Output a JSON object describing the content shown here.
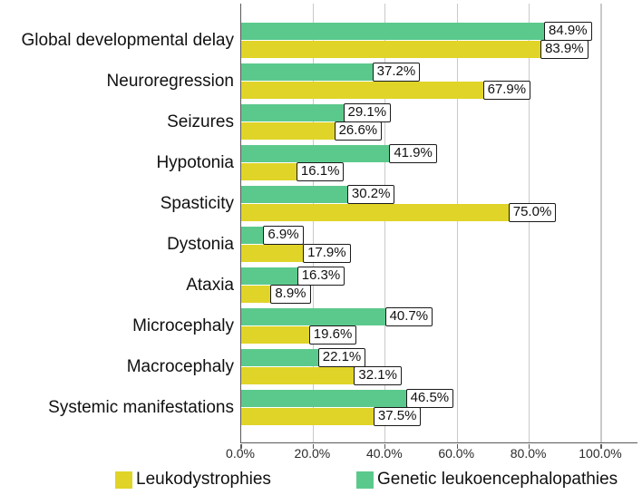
{
  "chart_data": {
    "type": "bar",
    "orientation": "horizontal",
    "title": "",
    "xlabel": "",
    "ylabel": "",
    "categories": [
      "Global developmental delay",
      "Neuroregression",
      "Seizures",
      "Hypotonia",
      "Spasticity",
      "Dystonia",
      "Ataxia",
      "Microcephaly",
      "Macrocephaly",
      "Systemic manifestations"
    ],
    "series": [
      {
        "name": "Leukodystrophies",
        "color": "#e0d428",
        "values": [
          83.9,
          67.9,
          26.6,
          16.1,
          75.0,
          17.9,
          8.9,
          19.6,
          32.1,
          37.5
        ]
      },
      {
        "name": "Genetic leukoencephalopathies",
        "color": "#5cc98c",
        "values": [
          84.9,
          37.2,
          29.1,
          41.9,
          30.2,
          6.9,
          16.3,
          40.7,
          22.1,
          46.5
        ]
      }
    ],
    "row_order_series_indexes": [
      1,
      0
    ],
    "value_label_format": "{value}%",
    "xlim": [
      0,
      110
    ],
    "x_tick_values": [
      0,
      20,
      40,
      60,
      80,
      100
    ],
    "x_tick_labels": [
      "0.0%",
      "20.0%",
      "40.0%",
      "60.0%",
      "80.0%",
      "100.0%"
    ],
    "grid": "vertical-gridlines-on",
    "legend_position": "bottom"
  },
  "legend": {
    "items": [
      {
        "label": "Leukodystrophies",
        "color": "#e0d428"
      },
      {
        "label": "Genetic leukoencephalopathies",
        "color": "#5cc98c"
      }
    ]
  },
  "colors": {
    "background": "#ffffff",
    "axis": "#595959",
    "gridline": "#c9c9c9",
    "text": "#111111",
    "value_box_border": "#1a1a1a",
    "value_box_bg": "#ffffff"
  }
}
